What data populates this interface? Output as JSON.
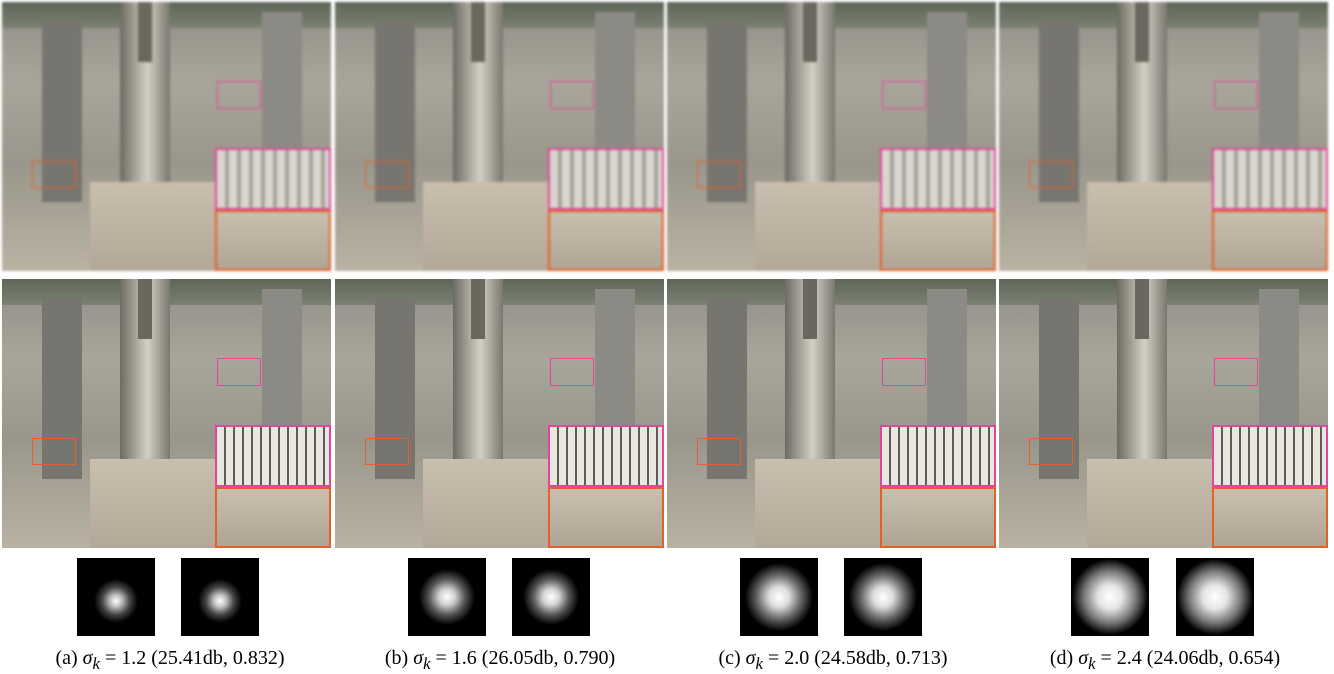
{
  "captions": [
    {
      "letter": "(a)",
      "sigma_symbol": "σ",
      "sigma_sub": "k",
      "value": "= 1.2",
      "metrics": "(25.41db, 0.832)"
    },
    {
      "letter": "(b)",
      "sigma_symbol": "σ",
      "sigma_sub": "k",
      "value": "= 1.6",
      "metrics": "(26.05db, 0.790)"
    },
    {
      "letter": "(c)",
      "sigma_symbol": "σ",
      "sigma_sub": "k",
      "value": "= 2.0",
      "metrics": "(24.58db, 0.713)"
    },
    {
      "letter": "(d)",
      "sigma_symbol": "σ",
      "sigma_sub": "k",
      "value": "= 2.4",
      "metrics": "(24.06db, 0.654)"
    }
  ],
  "colors": {
    "zoom_box_1": "#e0479a",
    "zoom_box_2": "#e2612a"
  }
}
